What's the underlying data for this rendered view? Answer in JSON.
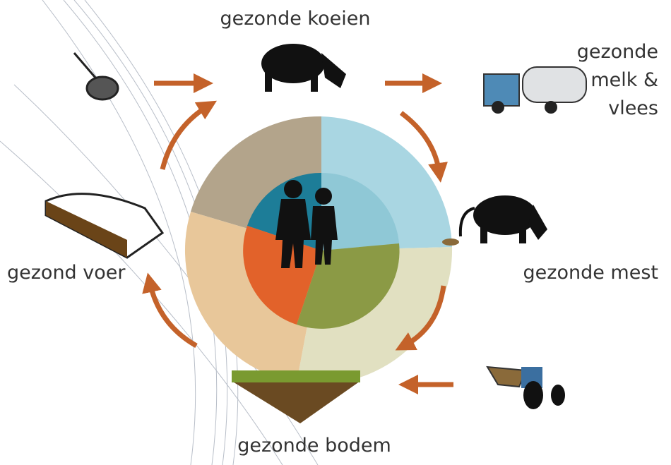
{
  "nodes": [
    {
      "label": "gezonde koeien"
    },
    {
      "label_lines": [
        "gezonde",
        "melk &",
        "vlees"
      ]
    },
    {
      "label": "gezonde mest"
    },
    {
      "label": "gezonde bodem"
    },
    {
      "label": "gezond voer"
    }
  ]
}
